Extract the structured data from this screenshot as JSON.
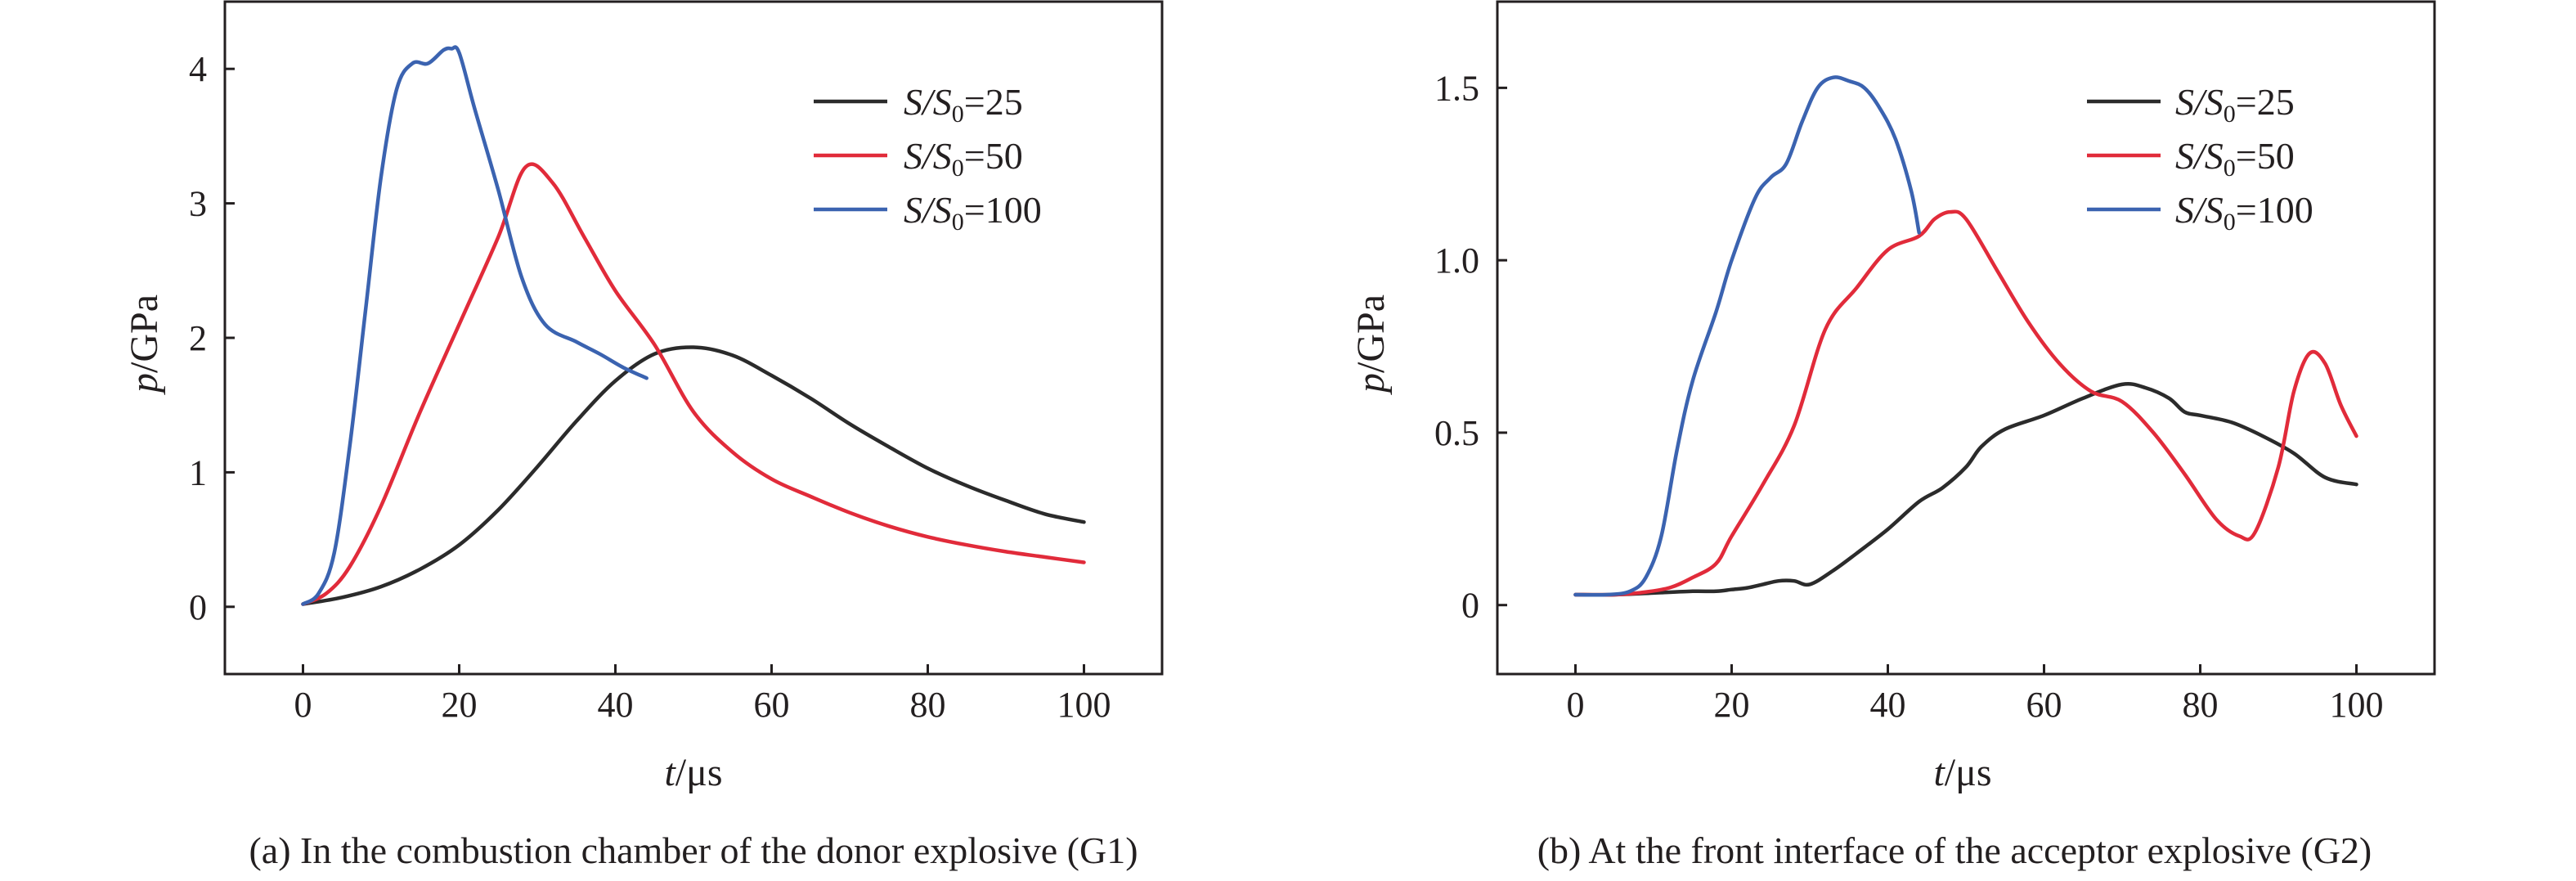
{
  "chart_data": [
    {
      "type": "line",
      "caption": "(a) In the combustion chamber of the donor explosive (G1)",
      "xlabel": "t/μs",
      "xlabel_var": "t",
      "xlabel_unit": "/μs",
      "ylabel": "p/GPa",
      "ylabel_var": "p",
      "ylabel_unit": "/GPa",
      "xlim": [
        -10,
        110
      ],
      "ylim": [
        -0.5,
        4.5
      ],
      "xticks": [
        0,
        20,
        40,
        60,
        80,
        100
      ],
      "yticks": [
        0,
        1,
        2,
        3,
        4
      ],
      "xtick_labels": [
        "0",
        "20",
        "40",
        "60",
        "80",
        "100"
      ],
      "ytick_labels": [
        "0",
        "1",
        "2",
        "3",
        "4"
      ],
      "grid": false,
      "legend_position": "top-right",
      "series": [
        {
          "name": "S/S0=25",
          "label_var": "S/S",
          "label_sub": "0",
          "label_val": "=25",
          "color": "#2b2b2b",
          "x": [
            0,
            5,
            10,
            15,
            20,
            25,
            30,
            35,
            40,
            45,
            50,
            55,
            60,
            65,
            70,
            75,
            80,
            85,
            90,
            95,
            100
          ],
          "y": [
            0.02,
            0.07,
            0.15,
            0.28,
            0.46,
            0.72,
            1.04,
            1.38,
            1.68,
            1.88,
            1.93,
            1.87,
            1.72,
            1.55,
            1.36,
            1.19,
            1.03,
            0.9,
            0.79,
            0.69,
            0.63
          ]
        },
        {
          "name": "S/S0=50",
          "label_var": "S/S",
          "label_sub": "0",
          "label_val": "=50",
          "color": "#e12b3a",
          "x": [
            0,
            3,
            6,
            10,
            15,
            20,
            25,
            28.5,
            32,
            36,
            40,
            45,
            50,
            55,
            60,
            65,
            70,
            75,
            80,
            85,
            90,
            95,
            100
          ],
          "y": [
            0.02,
            0.1,
            0.3,
            0.75,
            1.45,
            2.1,
            2.75,
            3.27,
            3.15,
            2.75,
            2.35,
            1.95,
            1.45,
            1.15,
            0.95,
            0.82,
            0.7,
            0.6,
            0.52,
            0.46,
            0.41,
            0.37,
            0.33
          ]
        },
        {
          "name": "S/S0=100",
          "label_var": "S/S",
          "label_sub": "0",
          "label_val": "=100",
          "color": "#3b63b0",
          "x": [
            0,
            2,
            4,
            6,
            8,
            10,
            12,
            14,
            16,
            18,
            19,
            20,
            22,
            25,
            28,
            31,
            35,
            38,
            41,
            44
          ],
          "y": [
            0.02,
            0.1,
            0.4,
            1.2,
            2.2,
            3.2,
            3.85,
            4.04,
            4.04,
            4.14,
            4.15,
            4.12,
            3.7,
            3.1,
            2.45,
            2.1,
            1.97,
            1.88,
            1.78,
            1.7
          ]
        }
      ]
    },
    {
      "type": "line",
      "caption": "(b) At the front interface of the acceptor explosive (G2)",
      "xlabel": "t/μs",
      "xlabel_var": "t",
      "xlabel_unit": "/μs",
      "ylabel": "p/GPa",
      "ylabel_var": "p",
      "ylabel_unit": "/GPa",
      "xlim": [
        -10,
        110
      ],
      "ylim": [
        -0.2,
        1.75
      ],
      "xticks": [
        0,
        20,
        40,
        60,
        80,
        100
      ],
      "yticks": [
        0,
        0.5,
        1.0,
        1.5
      ],
      "xtick_labels": [
        "0",
        "20",
        "40",
        "60",
        "80",
        "100"
      ],
      "ytick_labels": [
        "0",
        "0.5",
        "1.0",
        "1.5"
      ],
      "grid": false,
      "legend_position": "top-right",
      "series": [
        {
          "name": "S/S0=25",
          "label_var": "S/S",
          "label_sub": "0",
          "label_val": "=25",
          "color": "#2b2b2b",
          "x": [
            0,
            5,
            10,
            15,
            18,
            20,
            22,
            24,
            26,
            28,
            30,
            33,
            36,
            40,
            44,
            47,
            50,
            52,
            55,
            60,
            65,
            70,
            73,
            76,
            78,
            80,
            84,
            88,
            92,
            96,
            100
          ],
          "y": [
            0.03,
            0.03,
            0.035,
            0.04,
            0.04,
            0.045,
            0.05,
            0.06,
            0.07,
            0.07,
            0.06,
            0.1,
            0.15,
            0.22,
            0.3,
            0.34,
            0.4,
            0.46,
            0.51,
            0.55,
            0.6,
            0.64,
            0.63,
            0.6,
            0.56,
            0.55,
            0.53,
            0.49,
            0.44,
            0.37,
            0.35
          ]
        },
        {
          "name": "S/S0=50",
          "label_var": "S/S",
          "label_sub": "0",
          "label_val": "=50",
          "color": "#e12b3a",
          "x": [
            0,
            5,
            8,
            12,
            15,
            18,
            20,
            24,
            28,
            32,
            36,
            40,
            44,
            46,
            48,
            50,
            54,
            58,
            62,
            66,
            70,
            74,
            78,
            82,
            85,
            87,
            90,
            92,
            94,
            96,
            98,
            100
          ],
          "y": [
            0.03,
            0.03,
            0.035,
            0.05,
            0.08,
            0.12,
            0.2,
            0.35,
            0.52,
            0.8,
            0.92,
            1.03,
            1.07,
            1.12,
            1.14,
            1.12,
            0.97,
            0.82,
            0.7,
            0.62,
            0.59,
            0.5,
            0.38,
            0.25,
            0.2,
            0.21,
            0.4,
            0.62,
            0.73,
            0.7,
            0.58,
            0.49
          ]
        },
        {
          "name": "S/S0=100",
          "label_var": "S/S",
          "label_sub": "0",
          "label_val": "=100",
          "color": "#3b63b0",
          "x": [
            0,
            4,
            7,
            9,
            11,
            13,
            15,
            18,
            20,
            23,
            25,
            27,
            29,
            31,
            33,
            35,
            37,
            39,
            41,
            43,
            44
          ],
          "y": [
            0.03,
            0.03,
            0.04,
            0.08,
            0.2,
            0.45,
            0.65,
            0.85,
            1.0,
            1.18,
            1.24,
            1.28,
            1.4,
            1.5,
            1.53,
            1.52,
            1.5,
            1.44,
            1.35,
            1.2,
            1.08
          ]
        }
      ]
    }
  ]
}
